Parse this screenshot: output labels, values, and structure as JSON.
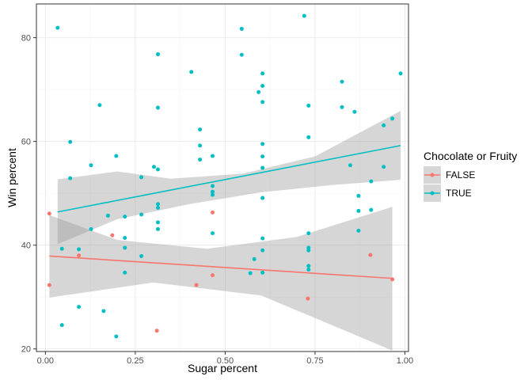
{
  "chart_data": {
    "type": "scatter",
    "xlabel": "Sugar percent",
    "ylabel": "Win percent",
    "xlim": [
      -0.025,
      1.01
    ],
    "ylim": [
      19.5,
      86.5
    ],
    "x_ticks": [
      0.0,
      0.25,
      0.5,
      0.75,
      1.0
    ],
    "x_tick_labels": [
      "0.00",
      "0.25",
      "0.50",
      "0.75",
      "1.00"
    ],
    "y_ticks": [
      20,
      40,
      60,
      80
    ],
    "y_tick_labels": [
      "20",
      "40",
      "60",
      "80"
    ],
    "grid": true,
    "legend": {
      "title": "Chocolate or Fruity",
      "position": "right"
    },
    "series": [
      {
        "name": "FALSE",
        "color": "#F8766D",
        "points": [
          [
            0.011,
            46.1
          ],
          [
            0.011,
            32.3
          ],
          [
            0.186,
            41.9
          ],
          [
            0.093,
            38.0
          ],
          [
            0.31,
            23.5
          ],
          [
            0.42,
            32.3
          ],
          [
            0.465,
            46.3
          ],
          [
            0.465,
            34.2
          ],
          [
            0.73,
            29.7
          ],
          [
            0.904,
            38.1
          ],
          [
            0.965,
            33.4
          ]
        ],
        "trend": {
          "x": [
            0.011,
            0.965
          ],
          "y": [
            37.9,
            33.6
          ]
        },
        "ci_upper": [
          [
            0.011,
            45.8
          ],
          [
            0.2,
            41.0
          ],
          [
            0.45,
            39.3
          ],
          [
            0.7,
            41.6
          ],
          [
            0.965,
            47.4
          ]
        ],
        "ci_lower": [
          [
            0.011,
            29.9
          ],
          [
            0.3,
            32.8
          ],
          [
            0.6,
            30.3
          ],
          [
            0.965,
            19.7
          ]
        ]
      },
      {
        "name": "TRUE",
        "color": "#00BFC4",
        "points": [
          [
            0.034,
            81.9
          ],
          [
            0.046,
            39.3
          ],
          [
            0.046,
            24.6
          ],
          [
            0.069,
            59.9
          ],
          [
            0.069,
            52.9
          ],
          [
            0.093,
            39.2
          ],
          [
            0.093,
            28.1
          ],
          [
            0.127,
            55.4
          ],
          [
            0.127,
            43.1
          ],
          [
            0.151,
            67.0
          ],
          [
            0.162,
            27.3
          ],
          [
            0.174,
            45.7
          ],
          [
            0.197,
            57.2
          ],
          [
            0.197,
            22.4
          ],
          [
            0.221,
            45.5
          ],
          [
            0.221,
            41.4
          ],
          [
            0.221,
            39.5
          ],
          [
            0.221,
            34.7
          ],
          [
            0.267,
            53.1
          ],
          [
            0.267,
            45.9
          ],
          [
            0.267,
            37.9
          ],
          [
            0.302,
            55.1
          ],
          [
            0.313,
            76.8
          ],
          [
            0.313,
            66.5
          ],
          [
            0.313,
            54.6
          ],
          [
            0.313,
            47.9
          ],
          [
            0.313,
            47.2
          ],
          [
            0.313,
            44.4
          ],
          [
            0.313,
            43.1
          ],
          [
            0.406,
            73.4
          ],
          [
            0.43,
            62.3
          ],
          [
            0.43,
            59.2
          ],
          [
            0.43,
            56.5
          ],
          [
            0.465,
            57.2
          ],
          [
            0.465,
            51.4
          ],
          [
            0.465,
            50.3
          ],
          [
            0.465,
            49.7
          ],
          [
            0.465,
            42.3
          ],
          [
            0.546,
            81.7
          ],
          [
            0.546,
            76.7
          ],
          [
            0.57,
            34.6
          ],
          [
            0.581,
            37.3
          ],
          [
            0.593,
            69.5
          ],
          [
            0.604,
            73.1
          ],
          [
            0.604,
            70.7
          ],
          [
            0.604,
            67.6
          ],
          [
            0.604,
            59.5
          ],
          [
            0.604,
            57.1
          ],
          [
            0.604,
            54.9
          ],
          [
            0.604,
            49.1
          ],
          [
            0.604,
            41.3
          ],
          [
            0.604,
            39.0
          ],
          [
            0.604,
            34.7
          ],
          [
            0.72,
            84.2
          ],
          [
            0.732,
            66.9
          ],
          [
            0.732,
            60.8
          ],
          [
            0.732,
            42.3
          ],
          [
            0.732,
            39.5
          ],
          [
            0.732,
            39.0
          ],
          [
            0.732,
            36.0
          ],
          [
            0.732,
            35.3
          ],
          [
            0.825,
            71.5
          ],
          [
            0.825,
            66.6
          ],
          [
            0.848,
            55.4
          ],
          [
            0.86,
            65.7
          ],
          [
            0.871,
            49.5
          ],
          [
            0.871,
            46.6
          ],
          [
            0.871,
            42.8
          ],
          [
            0.906,
            52.3
          ],
          [
            0.906,
            46.8
          ],
          [
            0.941,
            63.1
          ],
          [
            0.941,
            55.1
          ],
          [
            0.965,
            64.4
          ],
          [
            0.988,
            73.1
          ]
        ],
        "trend": {
          "x": [
            0.034,
            0.988
          ],
          "y": [
            46.4,
            59.2
          ]
        },
        "ci_upper": [
          [
            0.034,
            52.7
          ],
          [
            0.2,
            54.2
          ],
          [
            0.35,
            52.8
          ],
          [
            0.55,
            53.8
          ],
          [
            0.75,
            57.1
          ],
          [
            0.988,
            65.9
          ]
        ],
        "ci_lower": [
          [
            0.034,
            40.2
          ],
          [
            0.2,
            45.0
          ],
          [
            0.4,
            47.9
          ],
          [
            0.6,
            50.2
          ],
          [
            0.8,
            51.6
          ],
          [
            0.988,
            52.6
          ]
        ]
      }
    ]
  }
}
